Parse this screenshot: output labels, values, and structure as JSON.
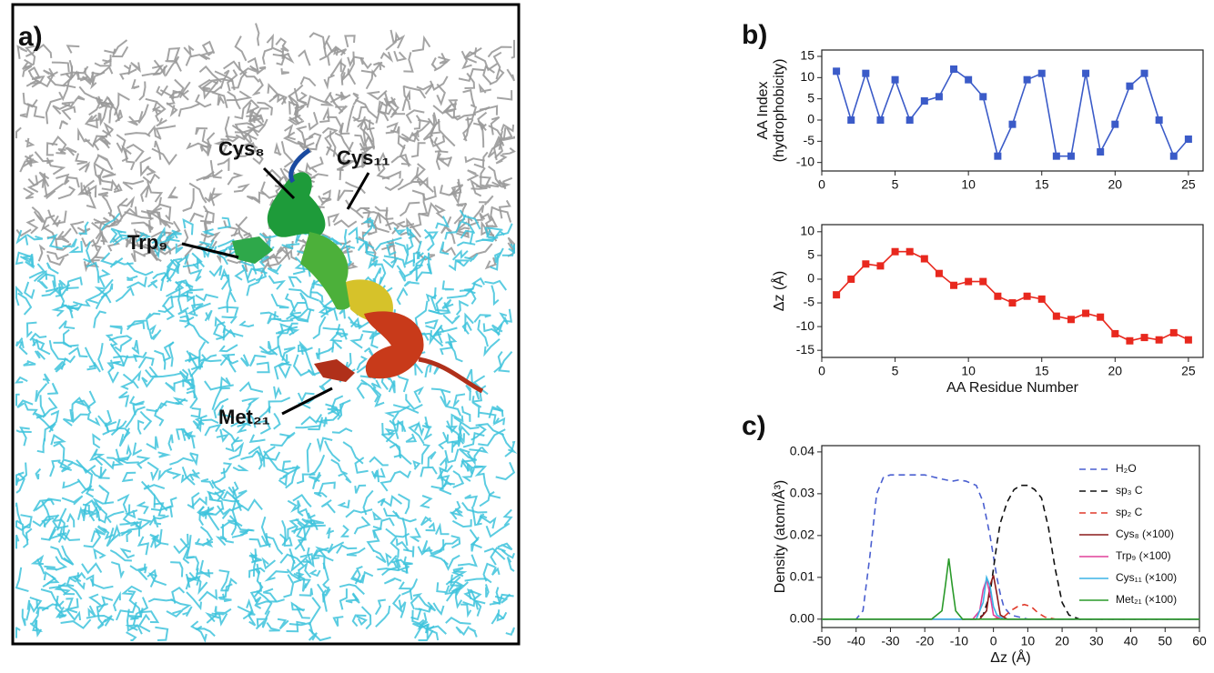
{
  "panel_labels": [
    "a)",
    "b)",
    "c)"
  ],
  "image": {
    "annotations": [
      "Cys₈",
      "Cys₁₁",
      "Trp₉",
      "Met₂₁"
    ]
  },
  "chart_data": [
    {
      "type": "line",
      "ylabel": [
        "AA Index",
        "(hydrophobicity)"
      ],
      "x": [
        1,
        2,
        3,
        4,
        5,
        6,
        7,
        8,
        9,
        10,
        11,
        12,
        13,
        14,
        15,
        16,
        17,
        18,
        19,
        20,
        21,
        22,
        23,
        24,
        25
      ],
      "series": [
        {
          "color": "#3b5bc8",
          "marker": "square",
          "values": [
            11.5,
            0,
            11,
            0,
            9.5,
            0,
            4.5,
            5.5,
            12,
            9.5,
            5.5,
            -8.5,
            -1,
            9.5,
            11,
            -8.5,
            -8.5,
            11,
            -7.5,
            -1,
            8,
            11,
            0,
            -8.5,
            -4.5
          ]
        }
      ],
      "xlim": [
        0,
        26
      ],
      "ylim": [
        -12,
        16.5
      ],
      "xticks": [
        0,
        5,
        10,
        15,
        20,
        25
      ],
      "yticks": [
        15,
        10,
        5,
        0,
        -5,
        -10
      ]
    },
    {
      "type": "line",
      "ylabel": [
        "Δz (Å)"
      ],
      "xlabel": "AA Residue Number",
      "x": [
        1,
        2,
        3,
        4,
        5,
        6,
        7,
        8,
        9,
        10,
        11,
        12,
        13,
        14,
        15,
        16,
        17,
        18,
        19,
        20,
        21,
        22,
        23,
        24,
        25
      ],
      "series": [
        {
          "color": "#e8281e",
          "marker": "square",
          "values": [
            -3.3,
            0,
            3.2,
            2.8,
            5.8,
            5.8,
            4.3,
            1.2,
            -1.3,
            -0.5,
            -0.5,
            -3.6,
            -5,
            -3.6,
            -4.2,
            -7.8,
            -8.5,
            -7.2,
            -8,
            -11.5,
            -13,
            -12.3,
            -12.8,
            -11.3,
            -12.8
          ]
        }
      ],
      "xlim": [
        0,
        26
      ],
      "ylim": [
        -16.5,
        11.5
      ],
      "xticks": [
        0,
        5,
        10,
        15,
        20,
        25
      ],
      "yticks": [
        10,
        5,
        0,
        -5,
        -10,
        -15
      ]
    },
    {
      "type": "line",
      "ylabel": [
        "Density (atom/Å³)"
      ],
      "xlabel": "Δz (Å)",
      "legend": "upper right",
      "series": [
        {
          "name": "H₂O",
          "color": "#4a5fd0",
          "dash": true,
          "x": [
            -50,
            -40,
            -38,
            -36,
            -34,
            -32,
            -30,
            -25,
            -20,
            -15,
            -12,
            -10,
            -8,
            -5,
            -3,
            -1,
            0,
            1,
            2,
            3,
            5,
            10,
            60
          ],
          "values": [
            0,
            0,
            0.002,
            0.015,
            0.03,
            0.034,
            0.0345,
            0.0345,
            0.0345,
            0.0335,
            0.033,
            0.0333,
            0.033,
            0.032,
            0.028,
            0.02,
            0.015,
            0.01,
            0.006,
            0.003,
            0.001,
            0,
            0
          ]
        },
        {
          "name": "sp₃ C",
          "color": "#111111",
          "dash": true,
          "x": [
            -10,
            -5,
            -3,
            -1,
            0,
            1,
            2,
            4,
            6,
            8,
            10,
            12,
            14,
            16,
            18,
            20,
            22,
            25,
            60
          ],
          "values": [
            0,
            0,
            0.001,
            0.006,
            0.012,
            0.018,
            0.023,
            0.028,
            0.031,
            0.032,
            0.032,
            0.031,
            0.029,
            0.022,
            0.012,
            0.004,
            0.001,
            0,
            0
          ]
        },
        {
          "name": "sp₂ C",
          "color": "#e03a2a",
          "dash": true,
          "x": [
            0,
            3,
            5,
            7,
            9,
            11,
            13,
            15,
            18
          ],
          "values": [
            0,
            0.0005,
            0.002,
            0.003,
            0.0035,
            0.003,
            0.0015,
            0.0005,
            0
          ]
        },
        {
          "name": "Cys₈ (×100)",
          "color": "#8b1a1a",
          "x": [
            -50,
            -4,
            -2,
            -1,
            0,
            1,
            2,
            4,
            60
          ],
          "values": [
            0,
            0,
            0.002,
            0.008,
            0.0105,
            0.006,
            0.001,
            0,
            0
          ]
        },
        {
          "name": "Trp₉ (×100)",
          "color": "#e0409a",
          "x": [
            -50,
            -6,
            -4,
            -3,
            -2,
            -1,
            0,
            2,
            60
          ],
          "values": [
            0,
            0,
            0.002,
            0.007,
            0.0095,
            0.006,
            0.001,
            0,
            0
          ]
        },
        {
          "name": "Cys₁₁ (×100)",
          "color": "#3cb4e6",
          "x": [
            -50,
            -5,
            -3,
            -2,
            -1,
            0,
            1,
            3,
            60
          ],
          "values": [
            0,
            0,
            0.004,
            0.01,
            0.008,
            0.003,
            0.001,
            0,
            0
          ]
        },
        {
          "name": "Met₂₁ (×100)",
          "color": "#2a9a2a",
          "x": [
            -50,
            -18,
            -15,
            -14,
            -13,
            -12,
            -11,
            -9,
            60
          ],
          "values": [
            0,
            0,
            0.002,
            0.008,
            0.0145,
            0.008,
            0.002,
            0,
            0
          ]
        }
      ],
      "xlim": [
        -50,
        60
      ],
      "ylim": [
        -0.002,
        0.0415
      ],
      "xticks": [
        -50,
        -40,
        -30,
        -20,
        -10,
        0,
        10,
        20,
        30,
        40,
        50,
        60
      ],
      "yticks": [
        {
          "value": 0,
          "label": "0.00"
        },
        {
          "value": 0.01,
          "label": "0.01"
        },
        {
          "value": 0.02,
          "label": "0.02"
        },
        {
          "value": 0.03,
          "label": "0.03"
        },
        {
          "value": 0.04,
          "label": "0.04"
        }
      ]
    }
  ]
}
